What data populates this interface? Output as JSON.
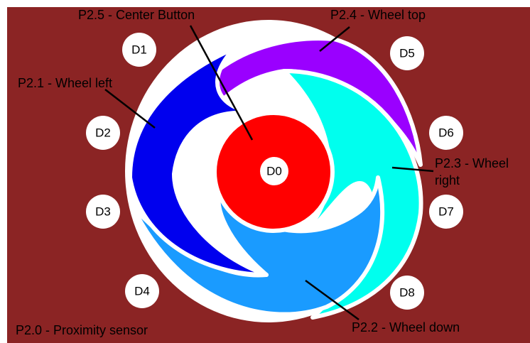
{
  "pads": [
    "D0",
    "D1",
    "D2",
    "D3",
    "D4",
    "D5",
    "D6",
    "D7",
    "D8"
  ],
  "labels": {
    "center": "P2.5 - Center Button",
    "top": "P2.4 - Wheel top",
    "left": "P2.1 - Wheel left",
    "right": [
      "P2.3 - Wheel",
      "right"
    ],
    "down": "P2.2 - Wheel down",
    "proximity": "P2.0 - Proximity sensor"
  }
}
